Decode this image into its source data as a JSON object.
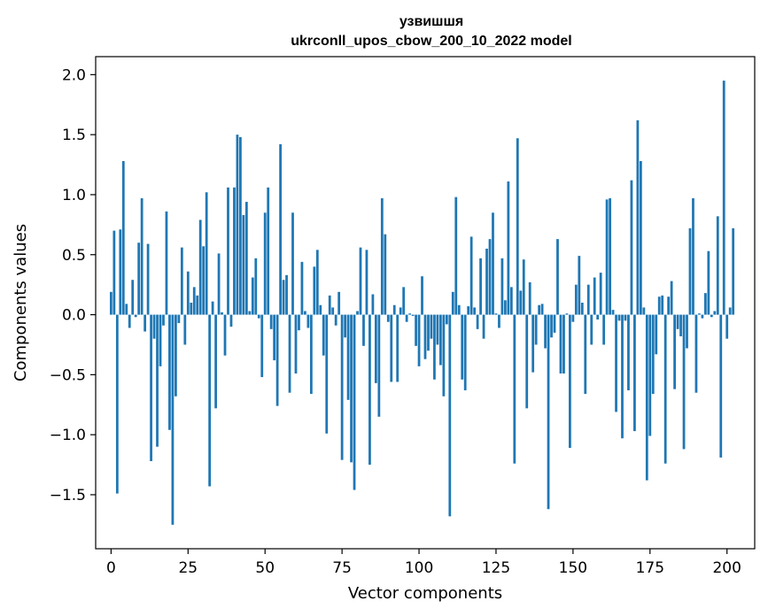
{
  "chart_data": {
    "type": "bar",
    "title": "узвишшя",
    "subtitle": "ukrconll_upos_cbow_200_10_2022 model",
    "xlabel": "Vector components",
    "ylabel": "Components values",
    "xlim": [
      -5,
      209
    ],
    "ylim": [
      -1.95,
      2.15
    ],
    "xticks": [
      0,
      25,
      50,
      75,
      100,
      125,
      150,
      175,
      200
    ],
    "yticks": [
      -1.5,
      -1.0,
      -0.5,
      0.0,
      0.5,
      1.0,
      1.5,
      2.0
    ],
    "ytick_labels": [
      "−1.5",
      "−1.0",
      "−0.5",
      "0.0",
      "0.5",
      "1.0",
      "1.5",
      "2.0"
    ],
    "bar_color": "#1f77b4",
    "series": [
      {
        "name": "узвишшя",
        "x_start": 0,
        "values": [
          0.19,
          0.7,
          -1.49,
          0.71,
          1.28,
          0.09,
          -0.11,
          0.29,
          -0.02,
          0.6,
          0.97,
          -0.14,
          0.59,
          -1.22,
          -0.2,
          -1.1,
          -0.43,
          -0.09,
          0.86,
          -0.96,
          -1.75,
          -0.68,
          -0.07,
          0.56,
          -0.25,
          0.36,
          0.1,
          0.23,
          0.16,
          0.79,
          0.57,
          1.02,
          -1.43,
          0.11,
          -0.78,
          0.51,
          0.02,
          -0.34,
          1.06,
          -0.1,
          1.06,
          1.5,
          1.48,
          0.83,
          0.94,
          0.03,
          0.31,
          0.47,
          -0.03,
          -0.52,
          0.85,
          1.06,
          -0.12,
          -0.38,
          -0.76,
          1.42,
          0.29,
          0.33,
          -0.65,
          0.85,
          -0.49,
          -0.13,
          0.44,
          0.03,
          -0.11,
          -0.66,
          0.4,
          0.54,
          0.08,
          -0.34,
          -0.99,
          0.16,
          0.06,
          -0.09,
          0.19,
          -1.21,
          -0.19,
          -0.71,
          -1.23,
          -1.46,
          0.03,
          0.56,
          -0.26,
          0.54,
          -1.25,
          0.17,
          -0.57,
          -0.85,
          0.97,
          0.67,
          -0.06,
          -0.56,
          0.08,
          -0.56,
          0.06,
          0.23,
          -0.06,
          0.01,
          -0.01,
          -0.26,
          -0.43,
          0.32,
          -0.37,
          -0.3,
          -0.2,
          -0.54,
          -0.25,
          -0.42,
          -0.68,
          -0.08,
          -1.68,
          0.19,
          0.98,
          0.08,
          -0.54,
          -0.63,
          0.07,
          0.65,
          0.06,
          -0.12,
          0.47,
          -0.2,
          0.55,
          0.63,
          0.85,
          0.01,
          -0.11,
          0.47,
          0.12,
          1.11,
          0.23,
          -1.24,
          1.47,
          0.2,
          0.46,
          -0.78,
          0.27,
          -0.48,
          -0.25,
          0.08,
          0.09,
          -0.28,
          -1.62,
          -0.19,
          -0.15,
          0.63,
          -0.49,
          -0.49,
          0.01,
          -1.11,
          -0.06,
          0.25,
          0.49,
          0.1,
          -0.66,
          0.25,
          -0.25,
          0.31,
          -0.04,
          0.35,
          -0.25,
          0.96,
          0.97,
          0.04,
          -0.81,
          -0.05,
          -1.03,
          -0.05,
          -0.63,
          1.12,
          -0.97,
          1.62,
          1.28,
          0.06,
          -1.38,
          -1.01,
          -0.66,
          -0.33,
          0.15,
          0.16,
          -1.24,
          0.15,
          0.28,
          -0.62,
          -0.12,
          -0.18,
          -1.12,
          -0.28,
          0.72,
          0.97,
          -0.65,
          0.01,
          -0.03,
          0.18,
          0.53,
          -0.02,
          0.03,
          0.82,
          -1.19,
          1.95,
          -0.2,
          0.06,
          0.72
        ]
      }
    ]
  }
}
